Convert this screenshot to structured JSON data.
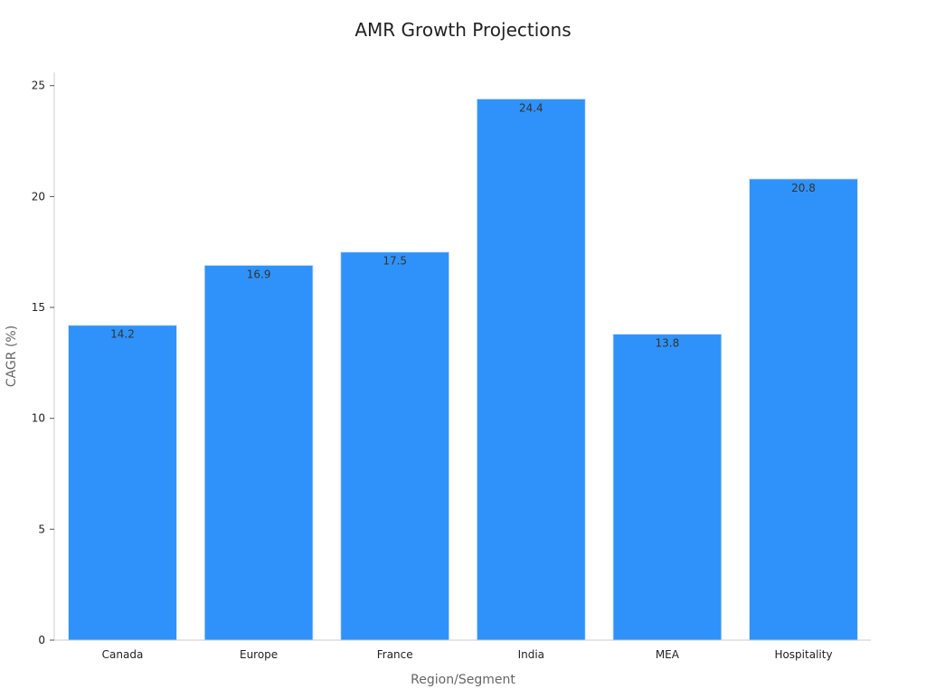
{
  "chart_data": {
    "type": "bar",
    "title": "AMR Growth Projections",
    "xlabel": "Region/Segment",
    "ylabel": "CAGR (%)",
    "categories": [
      "Canada",
      "Europe",
      "France",
      "India",
      "MEA",
      "Hospitality"
    ],
    "values": [
      14.2,
      16.9,
      17.5,
      24.4,
      13.8,
      20.8
    ],
    "data_labels": [
      "14.2",
      "16.9",
      "17.5",
      "24.4",
      "13.8",
      "20.8"
    ],
    "ylim": [
      0,
      25.6
    ],
    "yticks": [
      0,
      5,
      10,
      15,
      20,
      25
    ],
    "ytick_labels": [
      "0",
      "5",
      "10",
      "15",
      "20",
      "25"
    ],
    "grid": false,
    "legend": "none",
    "bar_color": "#2f92fa",
    "bar_edge_color": "#d9e7f7",
    "label_color": "#333333",
    "axis_color": "#cccccc",
    "text_color": "#222222",
    "axis_title_color": "#666666"
  }
}
